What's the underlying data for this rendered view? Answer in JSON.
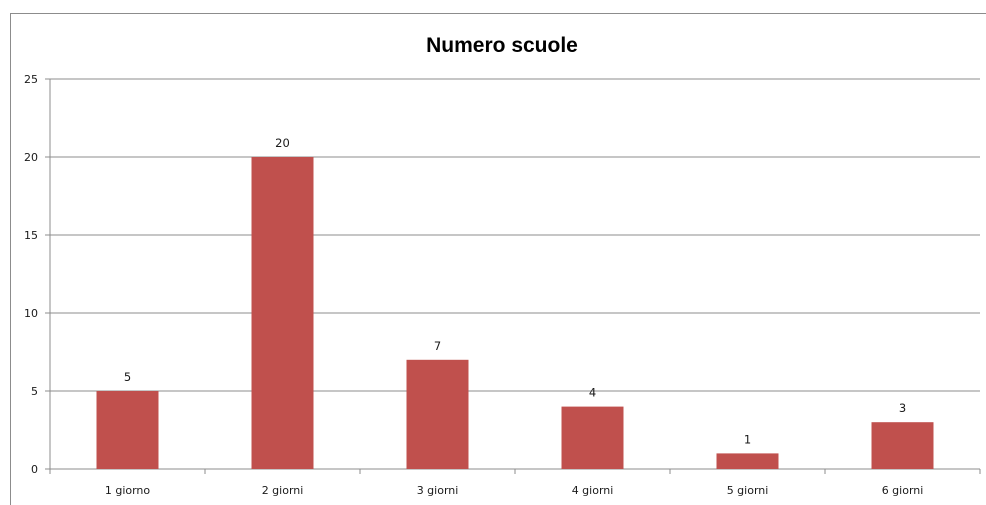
{
  "chart_data": {
    "type": "bar",
    "title": "Numero scuole",
    "categories": [
      "1 giorno",
      "2 giorni",
      "3 giorni",
      "4 giorni",
      "5 giorni",
      "6 giorni"
    ],
    "values": [
      5,
      20,
      7,
      4,
      1,
      3
    ],
    "ylim": [
      0,
      25
    ],
    "yticks": [
      0,
      5,
      10,
      15,
      20,
      25
    ],
    "grid": true,
    "data_labels": true,
    "bar_color": "#c0504d",
    "grid_color": "#8c8c8c"
  }
}
